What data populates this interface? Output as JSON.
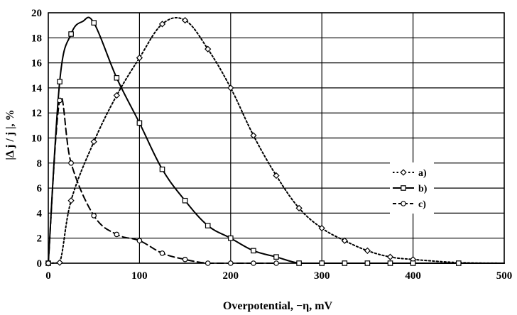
{
  "chart_data": {
    "type": "line",
    "xlabel": "Overpotential, −η, mV",
    "ylabel": "|Δ j / j |, %",
    "xlim": [
      0,
      500
    ],
    "ylim": [
      0,
      20
    ],
    "x_ticks": [
      "0",
      "100",
      "200",
      "300",
      "400",
      "500"
    ],
    "y_ticks": [
      "0",
      "2",
      "4",
      "6",
      "8",
      "10",
      "12",
      "14",
      "16",
      "18",
      "20"
    ],
    "grid": true,
    "legend_position": "right",
    "series": [
      {
        "name": "a)",
        "line_style": "dotted",
        "marker": "diamond",
        "color": "#000000",
        "x": [
          0,
          12.5,
          25,
          50,
          75,
          100,
          125,
          150,
          175,
          200,
          225,
          250,
          275,
          300,
          325,
          350,
          375,
          400,
          450,
          500
        ],
        "y": [
          0,
          0.05,
          5.0,
          9.7,
          13.4,
          16.4,
          19.1,
          19.4,
          17.1,
          14.0,
          10.2,
          7.0,
          4.4,
          2.8,
          1.8,
          1.0,
          0.5,
          0.3,
          0.05,
          0
        ],
        "marker_x": [
          0,
          12.5,
          25,
          50,
          75,
          100,
          125,
          150,
          175,
          200,
          225,
          250,
          275,
          300,
          325,
          350,
          375,
          400
        ],
        "marker_y": [
          0,
          0.05,
          5.0,
          9.7,
          13.4,
          16.4,
          19.1,
          19.4,
          17.1,
          14.0,
          10.2,
          7.0,
          4.4,
          2.8,
          1.8,
          1.0,
          0.5,
          0.3
        ]
      },
      {
        "name": "b)",
        "line_style": "solid",
        "marker": "square",
        "color": "#000000",
        "x": [
          0,
          12.5,
          25,
          37.5,
          50,
          75,
          100,
          125,
          150,
          175,
          200,
          225,
          250,
          275,
          300,
          325,
          350,
          375,
          400,
          450,
          500
        ],
        "y": [
          0,
          14.5,
          18.3,
          19.3,
          19.2,
          14.8,
          11.2,
          7.5,
          5.0,
          3.0,
          2.0,
          1.0,
          0.5,
          0,
          0,
          0,
          0,
          0,
          0,
          0,
          0
        ],
        "marker_x": [
          0,
          12.5,
          25,
          50,
          75,
          100,
          125,
          150,
          175,
          200,
          225,
          250,
          275,
          300,
          325,
          350,
          375,
          400,
          450
        ],
        "marker_y": [
          0,
          14.5,
          18.3,
          19.2,
          14.8,
          11.2,
          7.5,
          5.0,
          3.0,
          2.0,
          1.0,
          0.5,
          0,
          0,
          0,
          0,
          0,
          0,
          0
        ]
      },
      {
        "name": "c)",
        "line_style": "dashed",
        "marker": "circle",
        "color": "#000000",
        "x": [
          0,
          12.5,
          25,
          50,
          75,
          100,
          125,
          150,
          175,
          200,
          225,
          250
        ],
        "y": [
          0,
          13.0,
          8.0,
          3.8,
          2.3,
          1.8,
          0.8,
          0.3,
          0,
          0,
          0,
          0
        ],
        "marker_x": [
          0,
          12.5,
          25,
          50,
          75,
          100,
          125,
          150,
          175,
          200,
          225,
          250
        ],
        "marker_y": [
          0,
          13.0,
          8.0,
          3.8,
          2.3,
          1.8,
          0.8,
          0.3,
          0,
          0,
          0,
          0
        ]
      }
    ]
  }
}
